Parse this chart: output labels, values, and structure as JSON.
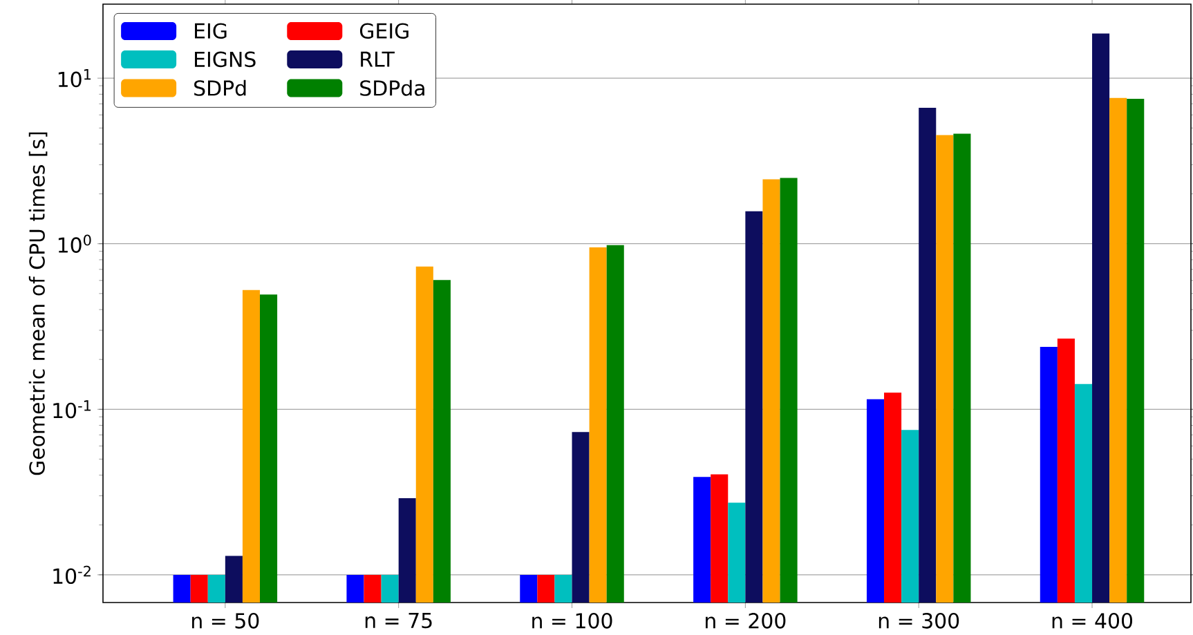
{
  "chart_data": {
    "type": "bar",
    "ylabel": "Geometric mean of CPU times [s]",
    "categories": [
      "n = 50",
      "n = 75",
      "n = 100",
      "n = 200",
      "n = 300",
      "n = 400"
    ],
    "series": [
      {
        "name": "EIG",
        "color": "#0000ff",
        "values": [
          0.01,
          0.01,
          0.01,
          0.039,
          0.115,
          0.238
        ]
      },
      {
        "name": "GEIG",
        "color": "#ff0000",
        "values": [
          0.01,
          0.01,
          0.01,
          0.0404,
          0.126,
          0.267
        ]
      },
      {
        "name": "EIGNS",
        "color": "#00bfbf",
        "values": [
          0.01,
          0.01,
          0.01,
          0.0273,
          0.075,
          0.142
        ]
      },
      {
        "name": "RLT",
        "color": "#0d0d5e",
        "values": [
          0.013,
          0.029,
          0.0728,
          1.57,
          6.62,
          18.6
        ]
      },
      {
        "name": "SDPd",
        "color": "#ffa500",
        "values": [
          0.525,
          0.728,
          0.95,
          2.45,
          4.53,
          7.6
        ]
      },
      {
        "name": "SDPda",
        "color": "#008000",
        "values": [
          0.493,
          0.603,
          0.98,
          2.5,
          4.62,
          7.5
        ]
      }
    ],
    "log": "y",
    "ylim": [
      0.0068,
      28
    ],
    "yticks": [
      {
        "value": 0.01,
        "label": "10$^{-2}$"
      },
      {
        "value": 0.1,
        "label": "10$^{-1}$"
      },
      {
        "value": 1,
        "label": "10$^{0}$"
      },
      {
        "value": 10,
        "label": "10$^{1}$"
      }
    ],
    "grid": "y",
    "legend": "top left"
  }
}
